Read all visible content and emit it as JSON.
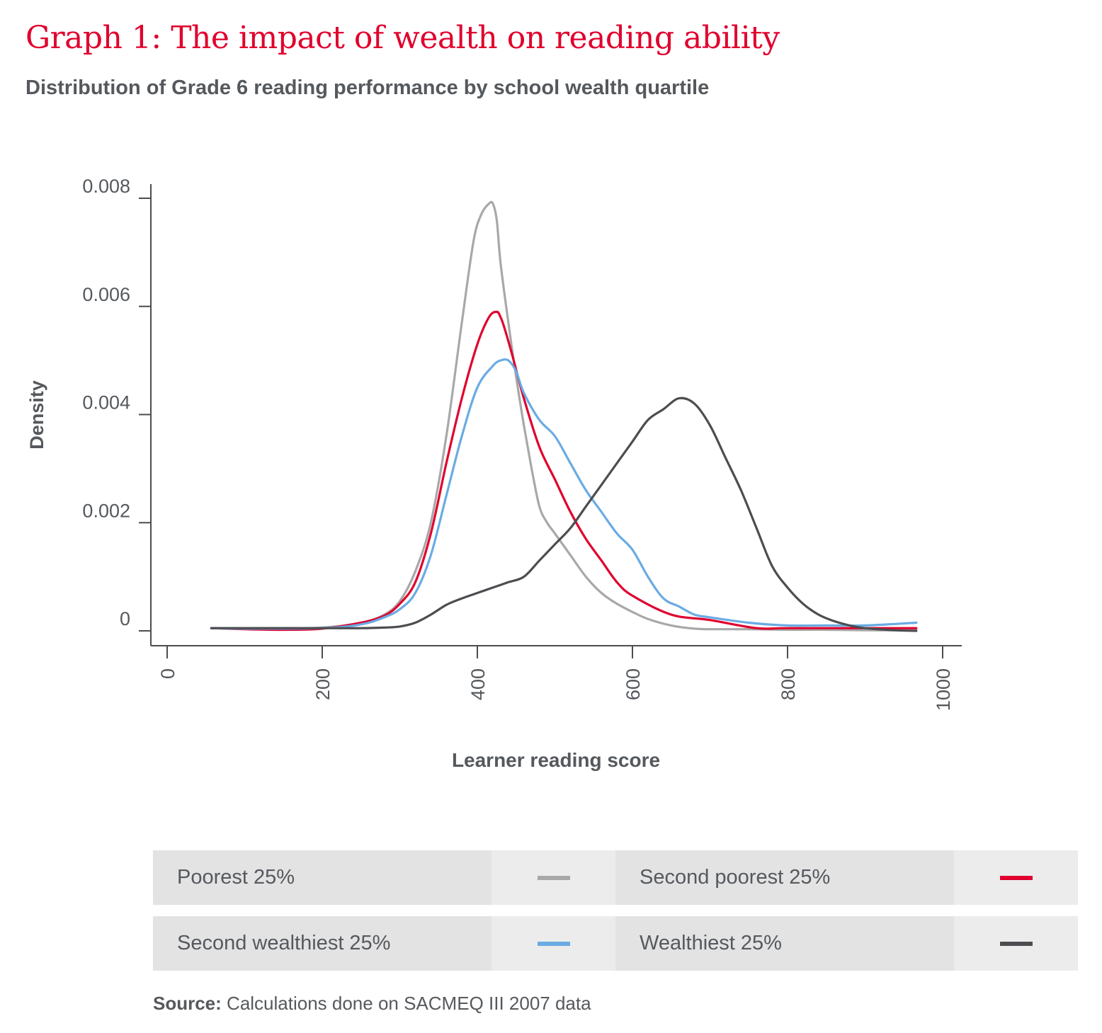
{
  "header": {
    "title": "Graph 1: The impact of wealth on reading ability",
    "subtitle": "Distribution of Grade 6 reading performance by school wealth quartile"
  },
  "chart_data": {
    "type": "line",
    "xlabel": "Learner reading score",
    "ylabel": "Density",
    "xlim": [
      0,
      1000
    ],
    "ylim": [
      0,
      0.008
    ],
    "x_ticks": [
      "0",
      "200",
      "400",
      "600",
      "800",
      "1000"
    ],
    "y_ticks": [
      "0",
      "0.002",
      "0.004",
      "0.006",
      "0.008"
    ],
    "grid": false,
    "legend_position": "bottom",
    "series": [
      {
        "name": "Poorest 25%",
        "color": "#a8a8a8",
        "x": [
          57,
          100,
          150,
          200,
          250,
          280,
          300,
          320,
          340,
          360,
          380,
          395,
          405,
          415,
          420,
          425,
          430,
          440,
          450,
          460,
          470,
          480,
          490,
          500,
          520,
          540,
          560,
          580,
          600,
          620,
          650,
          680,
          700,
          750,
          800,
          850,
          900,
          966
        ],
        "y": [
          5e-05,
          5e-05,
          5e-05,
          6e-05,
          0.00015,
          0.0003,
          0.00055,
          0.0011,
          0.002,
          0.0036,
          0.0057,
          0.0072,
          0.0077,
          0.0079,
          0.0079,
          0.0076,
          0.0068,
          0.0057,
          0.0047,
          0.0038,
          0.003,
          0.0023,
          0.002,
          0.0018,
          0.0014,
          0.001,
          0.0007,
          0.0005,
          0.00035,
          0.00022,
          0.0001,
          4e-05,
          3e-05,
          3e-05,
          2e-05,
          2e-05,
          1e-05,
          1e-05
        ]
      },
      {
        "name": "Second poorest 25%",
        "color": "#e0002d",
        "x": [
          57,
          100,
          150,
          200,
          250,
          280,
          300,
          320,
          340,
          360,
          380,
          400,
          415,
          425,
          430,
          435,
          445,
          460,
          480,
          500,
          520,
          540,
          560,
          580,
          600,
          650,
          700,
          760,
          800,
          900,
          966
        ],
        "y": [
          5e-05,
          3e-05,
          2e-05,
          4e-05,
          0.00015,
          0.00028,
          0.0005,
          0.0009,
          0.0018,
          0.0031,
          0.0043,
          0.0053,
          0.0058,
          0.0059,
          0.0058,
          0.0056,
          0.0051,
          0.0043,
          0.0034,
          0.0028,
          0.0022,
          0.0017,
          0.0013,
          0.0009,
          0.00065,
          0.0003,
          0.0002,
          5e-05,
          5e-05,
          5e-05,
          5e-05
        ]
      },
      {
        "name": "Second wealthiest 25%",
        "color": "#6aabe3",
        "x": [
          57,
          100,
          200,
          250,
          280,
          300,
          320,
          340,
          360,
          380,
          400,
          420,
          430,
          440,
          450,
          460,
          480,
          500,
          520,
          540,
          560,
          580,
          600,
          620,
          640,
          660,
          680,
          700,
          750,
          800,
          850,
          900,
          966
        ],
        "y": [
          5e-05,
          4e-05,
          5e-05,
          0.00012,
          0.00025,
          0.0004,
          0.0007,
          0.0014,
          0.0025,
          0.0036,
          0.0045,
          0.0049,
          0.005,
          0.005,
          0.0048,
          0.0044,
          0.0039,
          0.0036,
          0.0031,
          0.0026,
          0.0022,
          0.0018,
          0.0015,
          0.001,
          0.0006,
          0.00045,
          0.0003,
          0.00025,
          0.00015,
          0.0001,
          0.0001,
          0.0001,
          0.00015
        ]
      },
      {
        "name": "Wealthiest 25%",
        "color": "#4b4d50",
        "x": [
          57,
          100,
          200,
          250,
          280,
          300,
          320,
          340,
          360,
          380,
          400,
          420,
          440,
          460,
          480,
          500,
          520,
          540,
          560,
          580,
          600,
          620,
          640,
          660,
          680,
          700,
          720,
          740,
          760,
          780,
          800,
          820,
          840,
          860,
          880,
          900,
          940,
          966
        ],
        "y": [
          5e-05,
          5e-05,
          5e-05,
          5e-05,
          6e-05,
          8e-05,
          0.00015,
          0.0003,
          0.00048,
          0.0006,
          0.0007,
          0.0008,
          0.0009,
          0.001,
          0.0013,
          0.0016,
          0.0019,
          0.0023,
          0.0027,
          0.0031,
          0.0035,
          0.0039,
          0.0041,
          0.0043,
          0.0042,
          0.0038,
          0.0032,
          0.0026,
          0.0019,
          0.0012,
          0.0008,
          0.0005,
          0.0003,
          0.00018,
          0.0001,
          5e-05,
          1e-05,
          0.0
        ]
      }
    ]
  },
  "legend": {
    "items": [
      {
        "label": "Poorest 25%",
        "color": "#a8a8a8"
      },
      {
        "label": "Second poorest 25%",
        "color": "#e0002d"
      },
      {
        "label": "Second wealthiest 25%",
        "color": "#6aabe3"
      },
      {
        "label": "Wealthiest 25%",
        "color": "#4b4d50"
      }
    ]
  },
  "footer": {
    "source_label": "Source:",
    "source_text": " Calculations done on SACMEQ III 2007 data"
  }
}
